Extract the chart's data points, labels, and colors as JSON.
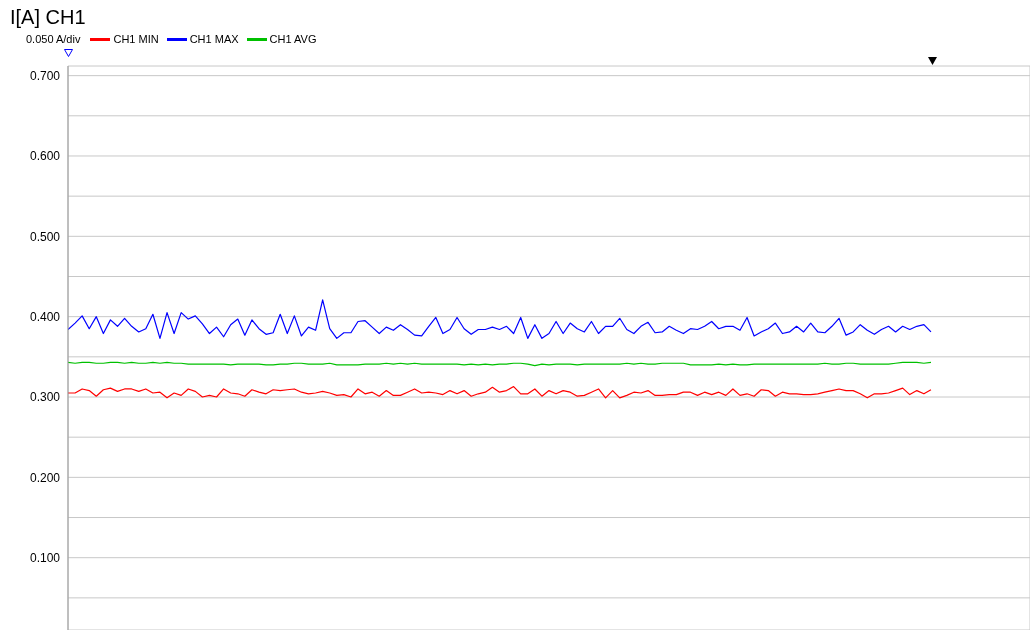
{
  "chart_data": {
    "type": "line",
    "title": "I[A] CH1",
    "annotations": [
      "0.050 A/div"
    ],
    "categories": [
      null,
      null,
      null,
      null,
      null,
      null,
      null,
      null,
      null,
      null,
      null,
      null,
      null,
      null,
      null,
      null,
      null,
      null,
      null,
      null,
      null,
      null,
      null,
      null,
      null,
      null,
      null,
      null,
      null,
      null,
      null,
      null,
      null,
      null,
      null,
      null,
      null,
      null,
      null,
      null,
      null,
      null,
      null,
      null,
      null,
      null,
      null,
      null,
      null,
      null,
      null,
      null,
      null,
      null,
      null,
      null,
      null,
      null,
      null,
      null,
      null,
      null,
      null,
      null,
      null,
      null,
      null,
      null,
      null,
      null,
      null,
      null,
      null,
      null,
      null,
      null,
      null,
      null,
      null,
      null,
      null,
      null,
      null,
      null,
      null,
      null,
      null,
      null,
      null,
      null,
      null,
      null,
      null,
      null,
      null,
      null,
      null,
      null,
      null,
      null,
      null,
      null,
      null,
      null,
      null,
      null,
      null,
      null,
      null,
      null,
      null,
      null,
      null,
      null,
      null,
      null,
      null,
      null,
      null,
      null,
      null,
      null,
      null,
      null,
      null,
      null,
      null,
      null,
      null,
      null,
      null,
      null,
      null,
      null,
      null,
      null,
      null
    ],
    "series": [
      {
        "name": "CH1 MIN",
        "color": "#ff0000",
        "values": [
          0.305,
          0.305,
          0.31,
          0.308,
          0.301,
          0.309,
          0.311,
          0.307,
          0.31,
          0.31,
          0.307,
          0.31,
          0.305,
          0.306,
          0.299,
          0.305,
          0.302,
          0.31,
          0.307,
          0.3,
          0.302,
          0.3,
          0.31,
          0.305,
          0.304,
          0.301,
          0.309,
          0.306,
          0.304,
          0.309,
          0.308,
          0.309,
          0.31,
          0.306,
          0.304,
          0.305,
          0.307,
          0.305,
          0.302,
          0.303,
          0.3,
          0.31,
          0.304,
          0.306,
          0.301,
          0.308,
          0.302,
          0.302,
          0.306,
          0.31,
          0.305,
          0.306,
          0.305,
          0.303,
          0.308,
          0.304,
          0.308,
          0.301,
          0.304,
          0.306,
          0.312,
          0.306,
          0.308,
          0.313,
          0.304,
          0.304,
          0.31,
          0.301,
          0.308,
          0.304,
          0.308,
          0.306,
          0.301,
          0.302,
          0.306,
          0.31,
          0.299,
          0.308,
          0.299,
          0.302,
          0.306,
          0.305,
          0.308,
          0.302,
          0.302,
          0.303,
          0.303,
          0.306,
          0.306,
          0.302,
          0.306,
          0.303,
          0.306,
          0.302,
          0.31,
          0.302,
          0.304,
          0.301,
          0.309,
          0.308,
          0.301,
          0.306,
          0.304,
          0.304,
          0.303,
          0.303,
          0.304,
          0.306,
          0.308,
          0.31,
          0.308,
          0.308,
          0.304,
          0.299,
          0.304,
          0.304,
          0.305,
          0.308,
          0.311,
          0.303,
          0.308,
          0.304,
          0.309,
          null,
          null,
          null,
          null,
          null,
          null,
          null,
          null,
          null,
          null,
          null,
          null,
          null,
          null
        ]
      },
      {
        "name": "CH1 MAX",
        "color": "#0000ff",
        "values": [
          0.384,
          0.392,
          0.401,
          0.385,
          0.4,
          0.379,
          0.396,
          0.388,
          0.398,
          0.388,
          0.381,
          0.385,
          0.403,
          0.373,
          0.405,
          0.379,
          0.405,
          0.397,
          0.401,
          0.391,
          0.379,
          0.387,
          0.375,
          0.39,
          0.397,
          0.377,
          0.396,
          0.385,
          0.378,
          0.38,
          0.403,
          0.379,
          0.401,
          0.376,
          0.387,
          0.383,
          0.421,
          0.385,
          0.373,
          0.38,
          0.38,
          0.394,
          0.395,
          0.387,
          0.379,
          0.387,
          0.383,
          0.39,
          0.384,
          0.377,
          0.376,
          0.388,
          0.399,
          0.379,
          0.384,
          0.399,
          0.385,
          0.378,
          0.384,
          0.384,
          0.387,
          0.384,
          0.388,
          0.379,
          0.399,
          0.373,
          0.39,
          0.373,
          0.379,
          0.394,
          0.379,
          0.392,
          0.385,
          0.381,
          0.394,
          0.379,
          0.388,
          0.388,
          0.398,
          0.384,
          0.379,
          0.388,
          0.393,
          0.38,
          0.381,
          0.388,
          0.383,
          0.379,
          0.385,
          0.384,
          0.388,
          0.394,
          0.385,
          0.388,
          0.388,
          0.383,
          0.399,
          0.376,
          0.381,
          0.385,
          0.392,
          0.379,
          0.381,
          0.388,
          0.381,
          0.392,
          0.381,
          0.38,
          0.388,
          0.398,
          0.377,
          0.381,
          0.39,
          0.383,
          0.378,
          0.384,
          0.388,
          0.381,
          0.388,
          0.384,
          0.388,
          0.39,
          0.381,
          null,
          null,
          null,
          null,
          null,
          null,
          null,
          null,
          null,
          null,
          null,
          null,
          null,
          null
        ]
      },
      {
        "name": "CH1 AVG",
        "color": "#00c000",
        "values": [
          0.343,
          0.342,
          0.343,
          0.343,
          0.342,
          0.342,
          0.343,
          0.343,
          0.342,
          0.343,
          0.342,
          0.342,
          0.343,
          0.342,
          0.343,
          0.342,
          0.342,
          0.341,
          0.341,
          0.341,
          0.341,
          0.341,
          0.341,
          0.34,
          0.341,
          0.341,
          0.341,
          0.341,
          0.34,
          0.34,
          0.341,
          0.341,
          0.342,
          0.342,
          0.341,
          0.341,
          0.341,
          0.342,
          0.34,
          0.34,
          0.34,
          0.34,
          0.341,
          0.341,
          0.341,
          0.342,
          0.341,
          0.342,
          0.341,
          0.342,
          0.341,
          0.341,
          0.341,
          0.341,
          0.341,
          0.341,
          0.34,
          0.341,
          0.34,
          0.341,
          0.34,
          0.341,
          0.341,
          0.342,
          0.342,
          0.341,
          0.339,
          0.341,
          0.34,
          0.341,
          0.341,
          0.341,
          0.34,
          0.341,
          0.341,
          0.341,
          0.341,
          0.341,
          0.341,
          0.342,
          0.341,
          0.342,
          0.341,
          0.341,
          0.342,
          0.342,
          0.342,
          0.342,
          0.34,
          0.34,
          0.34,
          0.34,
          0.341,
          0.34,
          0.341,
          0.34,
          0.34,
          0.341,
          0.341,
          0.341,
          0.341,
          0.341,
          0.341,
          0.341,
          0.341,
          0.341,
          0.341,
          0.342,
          0.341,
          0.341,
          0.342,
          0.342,
          0.341,
          0.341,
          0.341,
          0.341,
          0.341,
          0.342,
          0.343,
          0.343,
          0.343,
          0.342,
          0.343,
          null,
          null,
          null,
          null,
          null,
          null,
          null,
          null,
          null,
          null,
          null,
          null,
          null,
          null
        ]
      }
    ],
    "ylim": [
      0.01,
      0.712
    ],
    "yticks": [
      {
        "value": 0.05,
        "label": null
      },
      {
        "value": 0.1,
        "label": "0.100"
      },
      {
        "value": 0.15,
        "label": null
      },
      {
        "value": 0.2,
        "label": "0.200"
      },
      {
        "value": 0.25,
        "label": null
      },
      {
        "value": 0.3,
        "label": "0.300"
      },
      {
        "value": 0.35,
        "label": null
      },
      {
        "value": 0.4,
        "label": "0.400"
      },
      {
        "value": 0.45,
        "label": null
      },
      {
        "value": 0.5,
        "label": "0.500"
      },
      {
        "value": 0.55,
        "label": null
      },
      {
        "value": 0.6,
        "label": "0.600"
      },
      {
        "value": 0.65,
        "label": null
      },
      {
        "value": 0.7,
        "label": "0.700"
      }
    ],
    "grid": true,
    "legend": "top left",
    "tick_labels": "y",
    "marker": "none",
    "line_style": "solid"
  }
}
